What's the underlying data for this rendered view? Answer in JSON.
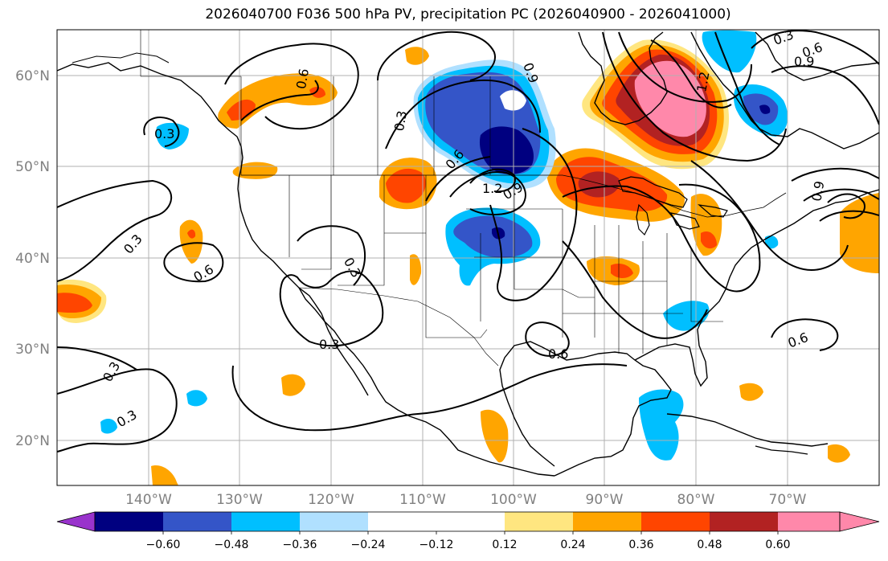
{
  "title": "2026040700 F036 500 hPa PV, precipitation PC (2026040900 - 2026041000)",
  "map": {
    "lon_range": [
      -150,
      -60
    ],
    "lat_range": [
      15,
      65
    ],
    "lon_ticks": [
      "140°W",
      "130°W",
      "120°W",
      "110°W",
      "100°W",
      "90°W",
      "80°W",
      "70°W"
    ],
    "lat_ticks": [
      "60°N",
      "50°N",
      "40°N",
      "30°N",
      "20°N"
    ],
    "grid": true
  },
  "contour_labels": [
    "0.3",
    "0.3",
    "0.3",
    "0.3",
    "0.3",
    "0.3",
    "0.3",
    "0.6",
    "0.6",
    "0.6",
    "0.6",
    "0.6",
    "0.9",
    "0.9",
    "0.9",
    "0.9",
    "1.2",
    "1.2",
    "0.3",
    "0.6"
  ],
  "colorbar": {
    "tick_labels": [
      "−0.60",
      "−0.48",
      "−0.36",
      "−0.24",
      "−0.12",
      "0.12",
      "0.24",
      "0.36",
      "0.48",
      "0.60"
    ],
    "colors": {
      "under": "#9933cc",
      "b1": "#000080",
      "b2": "#3455c8",
      "b3": "#00bfff",
      "b4": "#b0e0ff",
      "mid": "#ffffff",
      "p1": "#ffe680",
      "p2": "#ffa500",
      "p3": "#ff4500",
      "p4": "#b22222",
      "over": "#ff88aa"
    }
  }
}
